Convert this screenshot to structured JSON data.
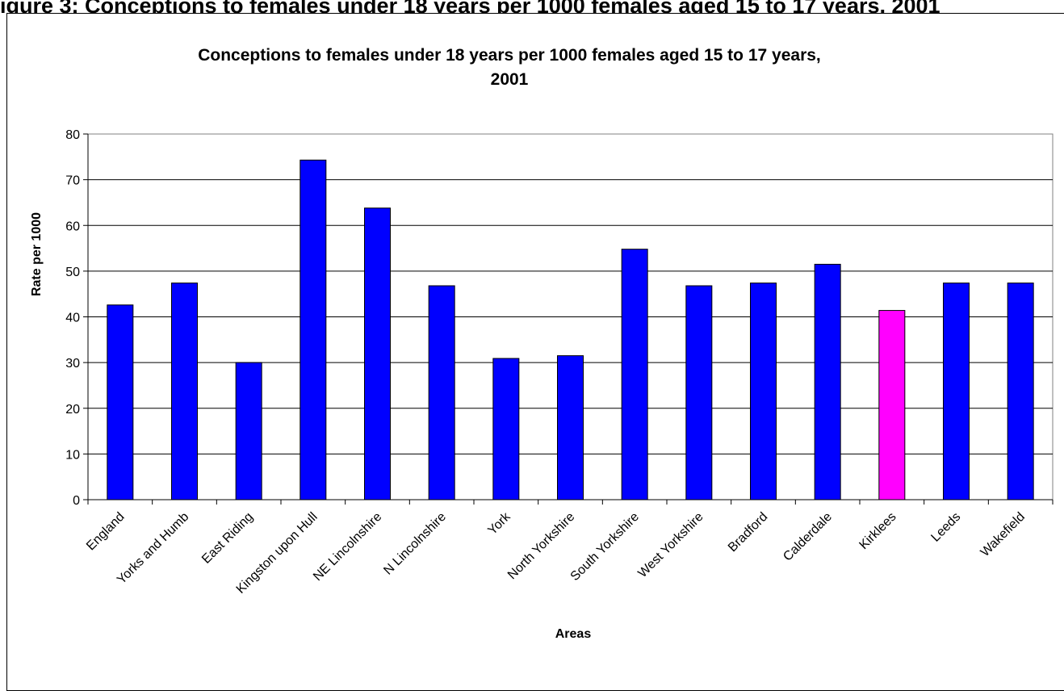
{
  "page": {
    "heading": "igure 3: Conceptions to females under 18 years per 1000 females aged 15 to 17 years, 2001"
  },
  "chart_data": {
    "type": "bar",
    "title": "Conceptions to females under 18 years per 1000 females aged 15 to 17 years,",
    "title_line2": "2001",
    "xlabel": "Areas",
    "ylabel": "Rate per 1000",
    "ylim": [
      0,
      80
    ],
    "yticks": [
      0,
      10,
      20,
      30,
      40,
      50,
      60,
      70,
      80
    ],
    "grid": true,
    "legend": "none",
    "categories": [
      "England",
      "Yorks and Humb",
      "East Riding",
      "Kingston upon Hull",
      "NE Lincolnshire",
      "N Lincolnshire",
      "York",
      "North Yorkshire",
      "South Yorkshire",
      "West Yorkshire",
      "Bradford",
      "Calderdale",
      "Kirklees",
      "Leeds",
      "Wakefield"
    ],
    "values": [
      42.6,
      47.4,
      30.0,
      74.3,
      63.8,
      46.8,
      30.9,
      31.5,
      54.8,
      46.8,
      47.4,
      51.5,
      41.4,
      47.4,
      47.4
    ],
    "colors": {
      "default": "#0000FF",
      "highlight": "#FF00FF",
      "highlight_category": "Kirklees"
    }
  }
}
